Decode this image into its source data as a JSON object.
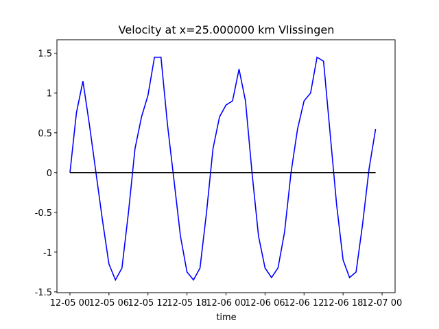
{
  "chart_data": {
    "type": "line",
    "title": "Velocity at x=25.000000 km Vlissingen",
    "x_label": "time",
    "xlim": [
      "12-04 22",
      "12-07 02"
    ],
    "xticks": [
      "12-05 00",
      "12-05 06",
      "12-05 12",
      "12-05 18",
      "12-06 00",
      "12-06 06",
      "12-06 12",
      "12-06 18",
      "12-07 00"
    ],
    "ylim": [
      -1.51,
      1.67
    ],
    "yticks": [
      1.5,
      1.0,
      0.5,
      0.0,
      -0.5,
      -1.0,
      -1.5
    ],
    "series": [
      {
        "color": "#0000ff",
        "x": [
          "12-05 00",
          "12-05 01",
          "12-05 02",
          "12-05 03",
          "12-05 04",
          "12-05 05",
          "12-05 06",
          "12-05 07",
          "12-05 08",
          "12-05 09",
          "12-05 10",
          "12-05 11",
          "12-05 12",
          "12-05 13",
          "12-05 14",
          "12-05 15",
          "12-05 16",
          "12-05 17",
          "12-05 18",
          "12-05 19",
          "12-05 20",
          "12-05 21",
          "12-05 22",
          "12-05 23",
          "12-06 00",
          "12-06 01",
          "12-06 02",
          "12-06 03",
          "12-06 04",
          "12-06 05",
          "12-06 06",
          "12-06 07",
          "12-06 08",
          "12-06 09",
          "12-06 10",
          "12-06 11",
          "12-06 12",
          "12-06 13",
          "12-06 14",
          "12-06 15",
          "12-06 16",
          "12-06 17",
          "12-06 18",
          "12-06 19",
          "12-06 20",
          "12-06 21",
          "12-06 22",
          "12-06 23"
        ],
        "values": [
          0.0,
          0.75,
          1.15,
          0.6,
          0.0,
          -0.6,
          -1.15,
          -1.35,
          -1.2,
          -0.5,
          0.3,
          0.7,
          0.97,
          1.45,
          1.45,
          0.6,
          -0.1,
          -0.8,
          -1.25,
          -1.35,
          -1.2,
          -0.5,
          0.3,
          0.7,
          0.85,
          0.9,
          1.3,
          0.9,
          0.0,
          -0.8,
          -1.2,
          -1.32,
          -1.2,
          -0.75,
          0.0,
          0.55,
          0.9,
          1.0,
          1.45,
          1.4,
          0.5,
          -0.4,
          -1.1,
          -1.32,
          -1.25,
          -0.65,
          0.05,
          0.55
        ]
      },
      {
        "color": "#000000",
        "x": [
          "12-05 00",
          "12-06 23"
        ],
        "values": [
          0.0,
          0.0
        ]
      }
    ]
  }
}
